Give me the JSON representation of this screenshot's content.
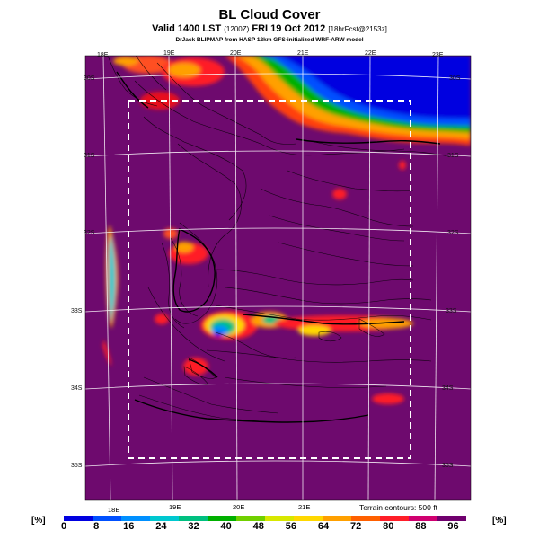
{
  "header": {
    "title": "BL Cloud Cover",
    "subtitle_main": "Valid 1400 LST",
    "subtitle_small1": "(1200Z)",
    "subtitle_main2": "FRI 19 Oct 2012",
    "subtitle_small2": "[18hrFcst@2153z]",
    "credit": "DrJack BLIPMAP from HASP 12km GFS-initialized WRF-ARW model"
  },
  "map": {
    "lon_labels_top": [
      "18E",
      "19E",
      "20E",
      "21E",
      "22E",
      "23E"
    ],
    "lon_labels_bottom": [
      "18E",
      "19E",
      "20E",
      "21E"
    ],
    "lat_labels_left": [
      "30S",
      "31S",
      "32S",
      "33S",
      "34S",
      "35S"
    ],
    "lat_labels_right": [
      "30S",
      "31S",
      "32S",
      "33S",
      "34S",
      "35S"
    ],
    "terrain_note": "Terrain contours: 500 ft"
  },
  "colorbar": {
    "unit_left": "[%]",
    "unit_right": "[%]",
    "ticks": [
      "0",
      "8",
      "16",
      "24",
      "32",
      "40",
      "48",
      "56",
      "64",
      "72",
      "80",
      "88",
      "96"
    ],
    "colors": [
      "#0000e0",
      "#0050ff",
      "#0090ff",
      "#00c8d0",
      "#00c080",
      "#00b000",
      "#70d000",
      "#d8e800",
      "#ffd800",
      "#ffa000",
      "#ff6000",
      "#ff1e28",
      "#d00070",
      "#70006e"
    ]
  }
}
